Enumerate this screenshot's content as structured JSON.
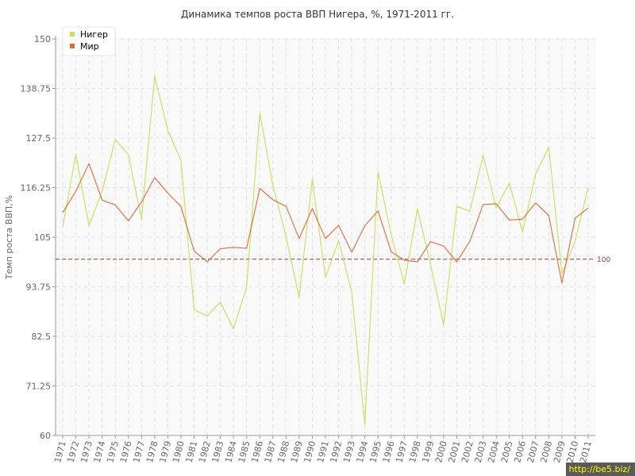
{
  "chart_data": {
    "type": "line",
    "title": "Динамика темпов роста ВВП Нигера, %, 1971-2011 гг.",
    "ylabel": "Темп роста ВВП,%",
    "xlabel": "",
    "ylim": [
      60,
      150
    ],
    "yticks": [
      "60",
      "71.25",
      "82.5",
      "93.75",
      "105",
      "116.25",
      "127.5",
      "138.75",
      "150"
    ],
    "reference_line": {
      "value": 100,
      "label": "100",
      "color": "#8b3a3a"
    },
    "legend_position": "top-left",
    "grid": true,
    "x": [
      "1971",
      "1972",
      "1973",
      "1974",
      "1975",
      "1976",
      "1977",
      "1978",
      "1979",
      "1980",
      "1981",
      "1982",
      "1983",
      "1984",
      "1985",
      "1986",
      "1987",
      "1988",
      "1989",
      "1990",
      "1991",
      "1992",
      "1993",
      "1994",
      "1995",
      "1996",
      "1997",
      "1998",
      "1999",
      "2000",
      "2001",
      "2002",
      "2003",
      "2004",
      "2005",
      "2006",
      "2007",
      "2008",
      "2009",
      "2010",
      "2011"
    ],
    "series": [
      {
        "name": "Нигер",
        "color": "#c5e05a",
        "values": [
          107.3,
          123.8,
          107.6,
          115.4,
          127.2,
          123.7,
          109.0,
          141.6,
          129.2,
          122.5,
          88.6,
          87.1,
          90.3,
          84.2,
          93.6,
          133.2,
          116.8,
          105.1,
          91.3,
          118.2,
          95.9,
          104.2,
          92.6,
          62.5,
          119.8,
          105.6,
          94.4,
          111.5,
          98.8,
          85.0,
          112.0,
          110.9,
          123.6,
          111.6,
          117.3,
          106.2,
          119.3,
          125.4,
          96.7,
          104.1,
          116.3
        ]
      },
      {
        "name": "Мир",
        "color": "#e06a3a",
        "values": [
          110.6,
          115.4,
          121.7,
          113.4,
          112.3,
          108.7,
          113.0,
          118.5,
          115.0,
          112.0,
          101.9,
          99.4,
          102.4,
          102.7,
          102.5,
          116.1,
          113.5,
          112.0,
          104.7,
          111.5,
          104.7,
          107.7,
          101.6,
          107.6,
          111.0,
          101.7,
          99.8,
          99.4,
          104.0,
          103.0,
          99.4,
          104.1,
          112.4,
          112.6,
          108.9,
          109.1,
          112.8,
          109.9,
          94.6,
          109.3,
          111.6
        ]
      }
    ]
  },
  "watermark": "http://be5.biz/"
}
